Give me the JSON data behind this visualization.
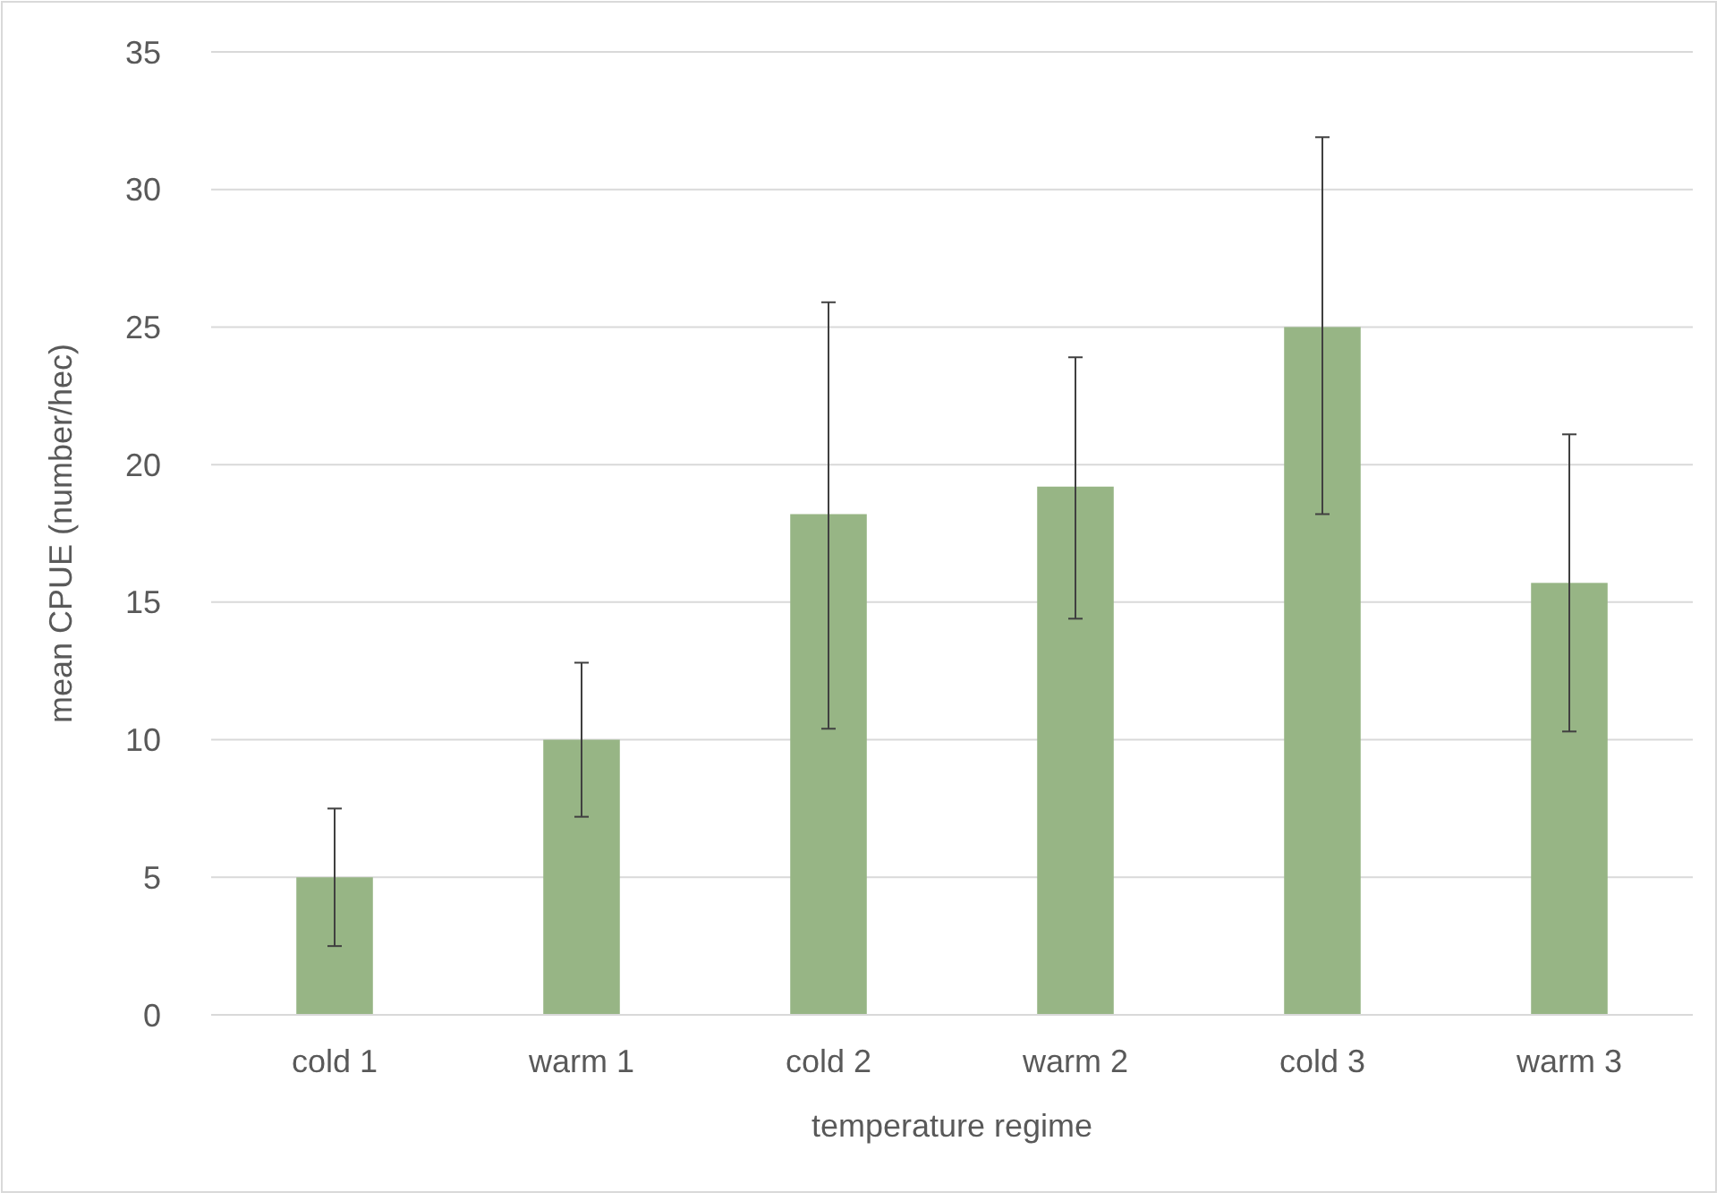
{
  "chart_data": {
    "type": "bar",
    "xlabel": "temperature regime",
    "ylabel": "mean CPUE (number/hec)",
    "categories": [
      "cold 1",
      "warm 1",
      "cold 2",
      "warm 2",
      "cold 3",
      "warm 3"
    ],
    "values": [
      5,
      10,
      18.2,
      19.2,
      25,
      15.7
    ],
    "errors": [
      [
        2.5,
        7.5
      ],
      [
        7.2,
        12.8
      ],
      [
        10.4,
        25.9
      ],
      [
        14.4,
        23.9
      ],
      [
        18.2,
        31.9
      ],
      [
        10.3,
        21.1
      ]
    ],
    "color": "#97b585",
    "ylim": [
      0,
      35
    ],
    "yticks": [
      0,
      5,
      10,
      15,
      20,
      25,
      30,
      35
    ],
    "grid": "y"
  }
}
